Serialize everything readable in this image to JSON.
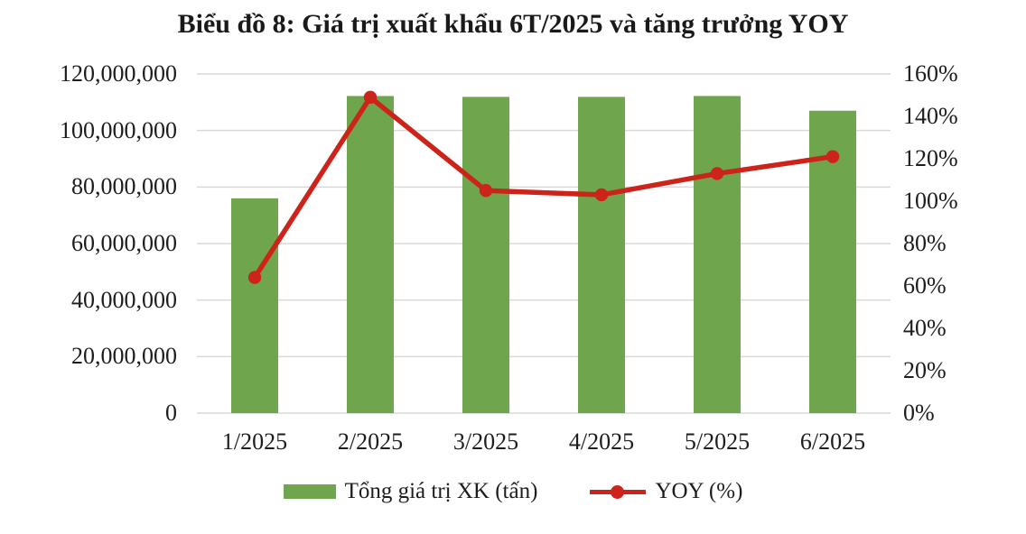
{
  "title": "Biểu đồ 8: Giá trị xuất khẩu 6T/2025 và tăng trưởng YOY",
  "colors": {
    "bar": "#6FA64D",
    "line": "#CC231A",
    "grid": "#D9D9D9",
    "text": "#1D1D1D",
    "background": "#FFFFFF"
  },
  "legend": {
    "bar_label": "Tổng giá trị XK (tấn)",
    "line_label": "YOY (%)"
  },
  "chart_data": {
    "type": "bar+line combo",
    "title": "Biểu đồ 8: Giá trị xuất khẩu 6T/2025 và tăng trưởng YOY",
    "categories": [
      "1/2025",
      "2/2025",
      "3/2025",
      "4/2025",
      "5/2025",
      "6/2025"
    ],
    "series": [
      {
        "name": "Tổng giá trị XK (tấn)",
        "type": "bar",
        "axis": "left",
        "color": "#6FA64D",
        "values": [
          76000000,
          112200000,
          111900000,
          111900000,
          112200000,
          107000000
        ]
      },
      {
        "name": "YOY (%)",
        "type": "line",
        "axis": "right",
        "color": "#CC231A",
        "values": [
          64,
          149,
          105,
          103,
          113,
          121
        ]
      }
    ],
    "left_axis": {
      "min": 0,
      "max": 120000000,
      "step": 20000000,
      "tick_labels": [
        "0",
        "20,000,000",
        "40,000,000",
        "60,000,000",
        "80,000,000",
        "100,000,000",
        "120,000,000"
      ]
    },
    "right_axis": {
      "min": 0,
      "max": 160,
      "step": 20,
      "tick_labels": [
        "0%",
        "20%",
        "40%",
        "60%",
        "80%",
        "100%",
        "120%",
        "140%",
        "160%"
      ]
    },
    "grid": "horizontal-only",
    "legend_position": "bottom-center"
  }
}
